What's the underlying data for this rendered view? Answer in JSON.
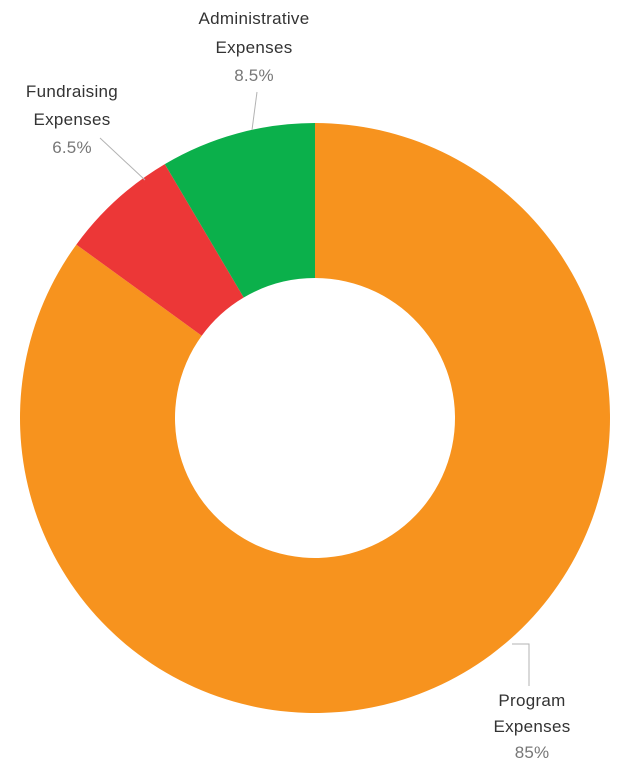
{
  "chart_data": {
    "type": "pie",
    "variant": "donut",
    "title": "",
    "slices": [
      {
        "label_lines": [
          "Program",
          "Expenses"
        ],
        "value": 85,
        "value_text": "85%",
        "color": "#f7931e"
      },
      {
        "label_lines": [
          "Fundraising",
          "Expenses"
        ],
        "value": 6.5,
        "value_text": "6.5%",
        "color": "#ec3737"
      },
      {
        "label_lines": [
          "Administrative",
          "Expenses"
        ],
        "value": 8.5,
        "value_text": "8.5%",
        "color": "#0bb04b"
      }
    ],
    "start_angle_deg": 0,
    "direction": "clockwise",
    "legend": "none",
    "data_labels": "outside-with-leader-lines"
  }
}
